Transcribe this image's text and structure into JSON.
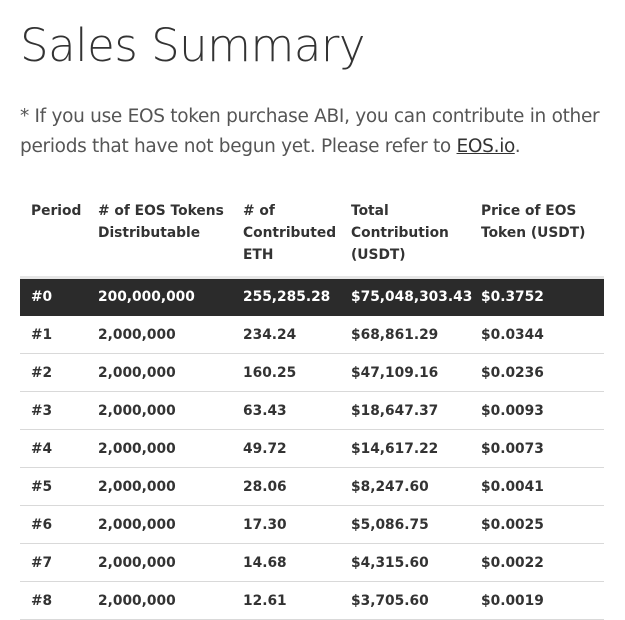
{
  "page": {
    "title": "Sales Summary",
    "note_text": "* If you use EOS token purchase ABI, you can contribute in other periods that have not begun yet. Please refer to ",
    "note_link": "EOS.io",
    "note_end": "."
  },
  "table": {
    "headers": [
      "Period",
      "# of EOS Tokens Distributable",
      "# of Contributed ETH",
      "Total Contribution (USDT)",
      "Price of EOS Token (USDT)"
    ],
    "rows": [
      [
        "#0",
        "200,000,000",
        "255,285.28",
        "$75,048,303.43",
        "$0.3752"
      ],
      [
        "#1",
        "2,000,000",
        "234.24",
        "$68,861.29",
        "$0.0344"
      ],
      [
        "#2",
        "2,000,000",
        "160.25",
        "$47,109.16",
        "$0.0236"
      ],
      [
        "#3",
        "2,000,000",
        "63.43",
        "$18,647.37",
        "$0.0093"
      ],
      [
        "#4",
        "2,000,000",
        "49.72",
        "$14,617.22",
        "$0.0073"
      ],
      [
        "#5",
        "2,000,000",
        "28.06",
        "$8,247.60",
        "$0.0041"
      ],
      [
        "#6",
        "2,000,000",
        "17.30",
        "$5,086.75",
        "$0.0025"
      ],
      [
        "#7",
        "2,000,000",
        "14.68",
        "$4,315.60",
        "$0.0022"
      ],
      [
        "#8",
        "2,000,000",
        "12.61",
        "$3,705.60",
        "$0.0019"
      ]
    ],
    "highlight_color": "#2b2b2b"
  }
}
